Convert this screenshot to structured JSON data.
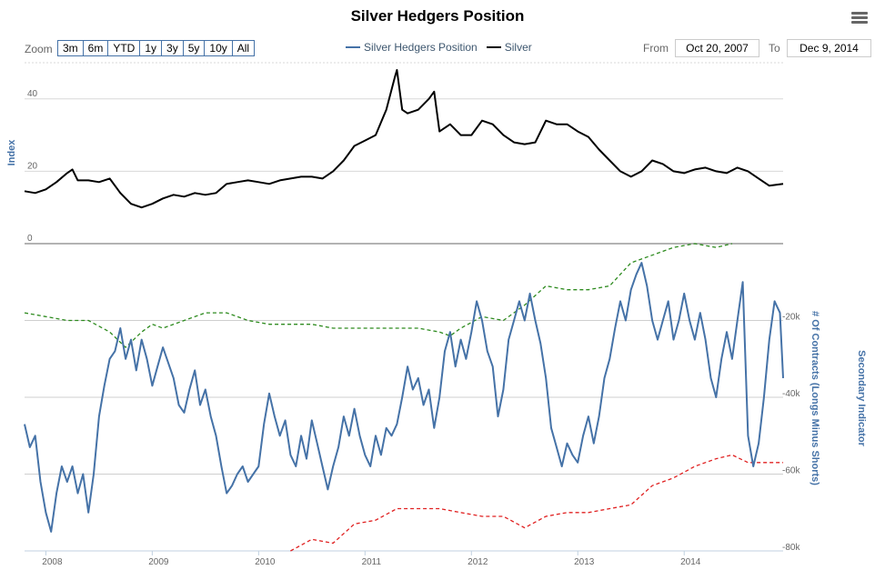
{
  "title": "Silver Hedgers Position",
  "zoom": {
    "label": "Zoom",
    "buttons": [
      "3m",
      "6m",
      "YTD",
      "1y",
      "3y",
      "5y",
      "10y",
      "All"
    ]
  },
  "range": {
    "from_label": "From",
    "from_value": "Oct 20, 2007",
    "to_label": "To",
    "to_value": "Dec 9, 2014"
  },
  "legend": [
    {
      "name": "Silver Hedgers Position",
      "color": "#4572a7"
    },
    {
      "name": "Silver",
      "color": "#000000"
    }
  ],
  "chart_data": {
    "type": "line",
    "title": "Silver Hedgers Position",
    "x_range": [
      2007.8,
      2014.93
    ],
    "x_ticks": [
      "2008",
      "2009",
      "2010",
      "2011",
      "2012",
      "2013",
      "2014"
    ],
    "upper_axis": {
      "title": "Index",
      "ylim": [
        0,
        50
      ],
      "ticks": [
        "0",
        "20",
        "40"
      ]
    },
    "lower_axis": {
      "title": "# Of Contracts (Longs Minus Shorts)",
      "secondary_title": "Secondary Indicator",
      "ylim": [
        -80000,
        0
      ],
      "ticks": [
        "-20k",
        "-40k",
        "-60k",
        "-80k"
      ]
    },
    "grid": true,
    "legend_position": "top-center",
    "series": [
      {
        "name": "Silver",
        "color": "#000000",
        "axis": "upper",
        "points": [
          [
            2007.8,
            14.5
          ],
          [
            2007.9,
            14
          ],
          [
            2008.0,
            15
          ],
          [
            2008.1,
            17
          ],
          [
            2008.2,
            19.5
          ],
          [
            2008.25,
            20.5
          ],
          [
            2008.3,
            17.5
          ],
          [
            2008.4,
            17.5
          ],
          [
            2008.5,
            17
          ],
          [
            2008.6,
            18
          ],
          [
            2008.7,
            14
          ],
          [
            2008.8,
            11
          ],
          [
            2008.9,
            10
          ],
          [
            2009.0,
            11
          ],
          [
            2009.1,
            12.5
          ],
          [
            2009.2,
            13.5
          ],
          [
            2009.3,
            13
          ],
          [
            2009.4,
            14
          ],
          [
            2009.5,
            13.5
          ],
          [
            2009.6,
            14
          ],
          [
            2009.7,
            16.5
          ],
          [
            2009.8,
            17
          ],
          [
            2009.9,
            17.5
          ],
          [
            2010.0,
            17
          ],
          [
            2010.1,
            16.5
          ],
          [
            2010.2,
            17.5
          ],
          [
            2010.3,
            18
          ],
          [
            2010.4,
            18.5
          ],
          [
            2010.5,
            18.5
          ],
          [
            2010.6,
            18
          ],
          [
            2010.7,
            20
          ],
          [
            2010.8,
            23
          ],
          [
            2010.9,
            27
          ],
          [
            2011.0,
            28.5
          ],
          [
            2011.1,
            30
          ],
          [
            2011.2,
            37
          ],
          [
            2011.28,
            46
          ],
          [
            2011.3,
            48
          ],
          [
            2011.35,
            37
          ],
          [
            2011.4,
            36
          ],
          [
            2011.5,
            37
          ],
          [
            2011.6,
            40
          ],
          [
            2011.65,
            42
          ],
          [
            2011.7,
            31
          ],
          [
            2011.8,
            33
          ],
          [
            2011.9,
            30
          ],
          [
            2012.0,
            30
          ],
          [
            2012.1,
            34
          ],
          [
            2012.2,
            33
          ],
          [
            2012.3,
            30
          ],
          [
            2012.4,
            28
          ],
          [
            2012.5,
            27.5
          ],
          [
            2012.6,
            28
          ],
          [
            2012.7,
            34
          ],
          [
            2012.8,
            33
          ],
          [
            2012.9,
            33
          ],
          [
            2013.0,
            31
          ],
          [
            2013.1,
            29.5
          ],
          [
            2013.2,
            26
          ],
          [
            2013.3,
            23
          ],
          [
            2013.4,
            20
          ],
          [
            2013.5,
            18.5
          ],
          [
            2013.6,
            20
          ],
          [
            2013.7,
            23
          ],
          [
            2013.8,
            22
          ],
          [
            2013.9,
            20
          ],
          [
            2014.0,
            19.5
          ],
          [
            2014.1,
            20.5
          ],
          [
            2014.2,
            21
          ],
          [
            2014.3,
            20
          ],
          [
            2014.4,
            19.5
          ],
          [
            2014.5,
            21
          ],
          [
            2014.6,
            20
          ],
          [
            2014.7,
            18
          ],
          [
            2014.8,
            16
          ],
          [
            2014.93,
            16.5
          ]
        ]
      },
      {
        "name": "Silver Hedgers Position",
        "color": "#4572a7",
        "axis": "lower",
        "points": [
          [
            2007.8,
            -47000
          ],
          [
            2007.85,
            -53000
          ],
          [
            2007.9,
            -50000
          ],
          [
            2007.95,
            -62000
          ],
          [
            2008.0,
            -70000
          ],
          [
            2008.05,
            -75000
          ],
          [
            2008.1,
            -65000
          ],
          [
            2008.15,
            -58000
          ],
          [
            2008.2,
            -62000
          ],
          [
            2008.25,
            -58000
          ],
          [
            2008.3,
            -65000
          ],
          [
            2008.35,
            -60000
          ],
          [
            2008.4,
            -70000
          ],
          [
            2008.45,
            -60000
          ],
          [
            2008.5,
            -45000
          ],
          [
            2008.55,
            -37000
          ],
          [
            2008.6,
            -30000
          ],
          [
            2008.65,
            -28000
          ],
          [
            2008.7,
            -22000
          ],
          [
            2008.75,
            -30000
          ],
          [
            2008.8,
            -25000
          ],
          [
            2008.85,
            -33000
          ],
          [
            2008.9,
            -25000
          ],
          [
            2008.95,
            -30000
          ],
          [
            2009.0,
            -37000
          ],
          [
            2009.05,
            -32000
          ],
          [
            2009.1,
            -27000
          ],
          [
            2009.2,
            -35000
          ],
          [
            2009.25,
            -42000
          ],
          [
            2009.3,
            -44000
          ],
          [
            2009.35,
            -38000
          ],
          [
            2009.4,
            -33000
          ],
          [
            2009.45,
            -42000
          ],
          [
            2009.5,
            -38000
          ],
          [
            2009.55,
            -45000
          ],
          [
            2009.6,
            -50000
          ],
          [
            2009.65,
            -58000
          ],
          [
            2009.7,
            -65000
          ],
          [
            2009.75,
            -63000
          ],
          [
            2009.8,
            -60000
          ],
          [
            2009.85,
            -58000
          ],
          [
            2009.9,
            -62000
          ],
          [
            2010.0,
            -58000
          ],
          [
            2010.05,
            -47000
          ],
          [
            2010.1,
            -39000
          ],
          [
            2010.15,
            -45000
          ],
          [
            2010.2,
            -50000
          ],
          [
            2010.25,
            -46000
          ],
          [
            2010.3,
            -55000
          ],
          [
            2010.35,
            -58000
          ],
          [
            2010.4,
            -50000
          ],
          [
            2010.45,
            -56000
          ],
          [
            2010.5,
            -46000
          ],
          [
            2010.55,
            -52000
          ],
          [
            2010.6,
            -58000
          ],
          [
            2010.65,
            -64000
          ],
          [
            2010.7,
            -58000
          ],
          [
            2010.75,
            -53000
          ],
          [
            2010.8,
            -45000
          ],
          [
            2010.85,
            -50000
          ],
          [
            2010.9,
            -43000
          ],
          [
            2010.95,
            -50000
          ],
          [
            2011.0,
            -55000
          ],
          [
            2011.05,
            -58000
          ],
          [
            2011.1,
            -50000
          ],
          [
            2011.15,
            -55000
          ],
          [
            2011.2,
            -48000
          ],
          [
            2011.25,
            -50000
          ],
          [
            2011.3,
            -47000
          ],
          [
            2011.35,
            -40000
          ],
          [
            2011.4,
            -32000
          ],
          [
            2011.45,
            -38000
          ],
          [
            2011.5,
            -35000
          ],
          [
            2011.55,
            -42000
          ],
          [
            2011.6,
            -38000
          ],
          [
            2011.65,
            -48000
          ],
          [
            2011.7,
            -40000
          ],
          [
            2011.75,
            -28000
          ],
          [
            2011.8,
            -23000
          ],
          [
            2011.85,
            -32000
          ],
          [
            2011.9,
            -25000
          ],
          [
            2011.95,
            -30000
          ],
          [
            2012.0,
            -23000
          ],
          [
            2012.05,
            -15000
          ],
          [
            2012.1,
            -20000
          ],
          [
            2012.15,
            -28000
          ],
          [
            2012.2,
            -32000
          ],
          [
            2012.25,
            -45000
          ],
          [
            2012.3,
            -38000
          ],
          [
            2012.35,
            -25000
          ],
          [
            2012.4,
            -20000
          ],
          [
            2012.45,
            -15000
          ],
          [
            2012.5,
            -20000
          ],
          [
            2012.55,
            -13000
          ],
          [
            2012.6,
            -20000
          ],
          [
            2012.65,
            -26000
          ],
          [
            2012.7,
            -35000
          ],
          [
            2012.75,
            -48000
          ],
          [
            2012.8,
            -53000
          ],
          [
            2012.85,
            -58000
          ],
          [
            2012.9,
            -52000
          ],
          [
            2012.95,
            -55000
          ],
          [
            2013.0,
            -57000
          ],
          [
            2013.05,
            -50000
          ],
          [
            2013.1,
            -45000
          ],
          [
            2013.15,
            -52000
          ],
          [
            2013.2,
            -45000
          ],
          [
            2013.25,
            -35000
          ],
          [
            2013.3,
            -30000
          ],
          [
            2013.35,
            -22000
          ],
          [
            2013.4,
            -15000
          ],
          [
            2013.45,
            -20000
          ],
          [
            2013.5,
            -12000
          ],
          [
            2013.55,
            -8000
          ],
          [
            2013.6,
            -5000
          ],
          [
            2013.65,
            -11000
          ],
          [
            2013.7,
            -20000
          ],
          [
            2013.75,
            -25000
          ],
          [
            2013.8,
            -20000
          ],
          [
            2013.85,
            -15000
          ],
          [
            2013.9,
            -25000
          ],
          [
            2013.95,
            -20000
          ],
          [
            2014.0,
            -13000
          ],
          [
            2014.05,
            -20000
          ],
          [
            2014.1,
            -25000
          ],
          [
            2014.15,
            -18000
          ],
          [
            2014.2,
            -25000
          ],
          [
            2014.25,
            -35000
          ],
          [
            2014.3,
            -40000
          ],
          [
            2014.35,
            -30000
          ],
          [
            2014.4,
            -23000
          ],
          [
            2014.45,
            -30000
          ],
          [
            2014.5,
            -20000
          ],
          [
            2014.55,
            -10000
          ],
          [
            2014.6,
            -50000
          ],
          [
            2014.65,
            -58000
          ],
          [
            2014.7,
            -52000
          ],
          [
            2014.75,
            -40000
          ],
          [
            2014.8,
            -25000
          ],
          [
            2014.85,
            -15000
          ],
          [
            2014.9,
            -18000
          ],
          [
            2014.93,
            -35000
          ]
        ]
      },
      {
        "color": "#2e8b1f",
        "style": "dashed",
        "axis": "lower",
        "points": [
          [
            2007.8,
            -18000
          ],
          [
            2008.0,
            -19000
          ],
          [
            2008.2,
            -20000
          ],
          [
            2008.4,
            -20000
          ],
          [
            2008.6,
            -23000
          ],
          [
            2008.75,
            -27000
          ],
          [
            2008.9,
            -23000
          ],
          [
            2009.0,
            -21000
          ],
          [
            2009.1,
            -22000
          ],
          [
            2009.3,
            -20000
          ],
          [
            2009.5,
            -18000
          ],
          [
            2009.7,
            -18000
          ],
          [
            2009.9,
            -20000
          ],
          [
            2010.1,
            -21000
          ],
          [
            2010.3,
            -21000
          ],
          [
            2010.5,
            -21000
          ],
          [
            2010.7,
            -22000
          ],
          [
            2010.9,
            -22000
          ],
          [
            2011.1,
            -22000
          ],
          [
            2011.3,
            -22000
          ],
          [
            2011.5,
            -22000
          ],
          [
            2011.7,
            -23000
          ],
          [
            2011.8,
            -24000
          ],
          [
            2011.9,
            -22000
          ],
          [
            2012.1,
            -19000
          ],
          [
            2012.3,
            -20000
          ],
          [
            2012.5,
            -16000
          ],
          [
            2012.7,
            -11000
          ],
          [
            2012.9,
            -12000
          ],
          [
            2013.1,
            -12000
          ],
          [
            2013.3,
            -11000
          ],
          [
            2013.5,
            -5000
          ],
          [
            2013.7,
            -3000
          ],
          [
            2013.9,
            -1000
          ],
          [
            2014.1,
            0
          ],
          [
            2014.3,
            -1000
          ],
          [
            2014.45,
            0
          ]
        ]
      },
      {
        "color": "#e02020",
        "style": "dashed",
        "axis": "lower",
        "points": [
          [
            2010.3,
            -80000
          ],
          [
            2010.5,
            -77000
          ],
          [
            2010.7,
            -78000
          ],
          [
            2010.9,
            -73000
          ],
          [
            2011.1,
            -72000
          ],
          [
            2011.3,
            -69000
          ],
          [
            2011.5,
            -69000
          ],
          [
            2011.7,
            -69000
          ],
          [
            2011.9,
            -70000
          ],
          [
            2012.1,
            -71000
          ],
          [
            2012.3,
            -71000
          ],
          [
            2012.5,
            -74000
          ],
          [
            2012.7,
            -71000
          ],
          [
            2012.9,
            -70000
          ],
          [
            2013.1,
            -70000
          ],
          [
            2013.3,
            -69000
          ],
          [
            2013.5,
            -68000
          ],
          [
            2013.7,
            -63000
          ],
          [
            2013.9,
            -61000
          ],
          [
            2014.1,
            -58000
          ],
          [
            2014.3,
            -56000
          ],
          [
            2014.45,
            -55000
          ],
          [
            2014.6,
            -57000
          ],
          [
            2014.93,
            -57000
          ]
        ]
      }
    ]
  }
}
